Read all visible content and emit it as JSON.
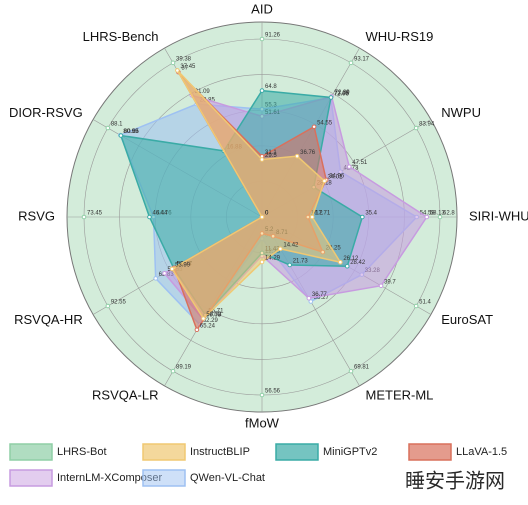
{
  "chart_data": {
    "type": "radar",
    "categories": [
      "AID",
      "WHU-RS19",
      "NWPU",
      "SIRI-WHU",
      "EuroSAT",
      "METER-ML",
      "fMoW",
      "RSVQA-LR",
      "RSVQA-HR",
      "RSVG",
      "DIOR-RSVG",
      "LHRS-Bench"
    ],
    "series": [
      {
        "name": "LHRS-Bot",
        "color": "#8fcfa6",
        "values": [
          91.26,
          93.17,
          83.94,
          62.8,
          51.4,
          69.81,
          56.56,
          89.19,
          92.55,
          73.45,
          88.1,
          39.38
        ]
      },
      {
        "name": "QWen-VL-Chat",
        "color": "#9ec1f2",
        "values": [
          55.3,
          72.06,
          42.73,
          54.58,
          33.28,
          38.27,
          6.89,
          62.29,
          63.83,
          44.76,
          80.99,
          28.85
        ]
      },
      {
        "name": "InternLM-XComposer",
        "color": "#c79be0",
        "values": [
          51.61,
          72.89,
          47.51,
          58.13,
          39.7,
          36.77,
          12.26,
          59.08,
          58.53,
          0,
          0,
          31.09
        ]
      },
      {
        "name": "MiniGPTv2",
        "color": "#3aaba6",
        "values": [
          64.8,
          72.25,
          28.18,
          35.4,
          28.42,
          21.73,
          11.43,
          56.71,
          53.04,
          46.44,
          80.65,
          16.88
        ]
      },
      {
        "name": "LLaVA-1.5",
        "color": "#d9705c",
        "values": [
          31.1,
          54.55,
          34.96,
          16.2,
          20.25,
          8.71,
          5.2,
          65.24,
          52.77,
          0,
          0,
          37.0
        ]
      },
      {
        "name": "InstructBLIP",
        "color": "#f0c872",
        "values": [
          29.5,
          36.76,
          34.01,
          17.71,
          26.12,
          14.42,
          14.29,
          58.73,
          53.99,
          0,
          0,
          37.45
        ]
      }
    ],
    "watermark": "睡安手游网"
  }
}
